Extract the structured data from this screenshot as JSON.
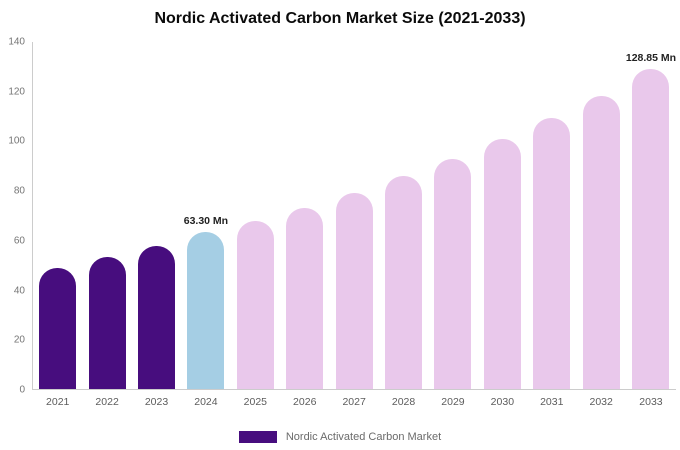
{
  "chart_data": {
    "type": "bar",
    "title": "Nordic Activated Carbon Market Size (2021-2033)",
    "xlabel": "",
    "ylabel": "",
    "unit": "Mn",
    "legend": "Nordic Activated Carbon Market",
    "grid": false,
    "legend_position": "bottom-center",
    "ylim": [
      0,
      140
    ],
    "yticks": [
      0,
      20,
      40,
      60,
      80,
      100,
      120,
      140
    ],
    "colors": {
      "historical": "#470D7E",
      "current": "#A5CEE4",
      "forecast": "#E9C8EB",
      "axis": "#cccccc"
    },
    "points": [
      {
        "year": "2021",
        "value": 48.5,
        "color": "historical"
      },
      {
        "year": "2022",
        "value": 53.0,
        "color": "historical"
      },
      {
        "year": "2023",
        "value": 57.5,
        "color": "historical"
      },
      {
        "year": "2024",
        "value": 63.3,
        "color": "current",
        "label": "63.30 Mn"
      },
      {
        "year": "2025",
        "value": 67.5,
        "color": "forecast"
      },
      {
        "year": "2026",
        "value": 73.0,
        "color": "forecast"
      },
      {
        "year": "2027",
        "value": 79.0,
        "color": "forecast"
      },
      {
        "year": "2028",
        "value": 85.5,
        "color": "forecast"
      },
      {
        "year": "2029",
        "value": 92.5,
        "color": "forecast"
      },
      {
        "year": "2030",
        "value": 100.5,
        "color": "forecast"
      },
      {
        "year": "2031",
        "value": 109.0,
        "color": "forecast"
      },
      {
        "year": "2032",
        "value": 118.0,
        "color": "forecast"
      },
      {
        "year": "2033",
        "value": 128.85,
        "color": "forecast",
        "label": "128.85 Mn"
      }
    ]
  }
}
